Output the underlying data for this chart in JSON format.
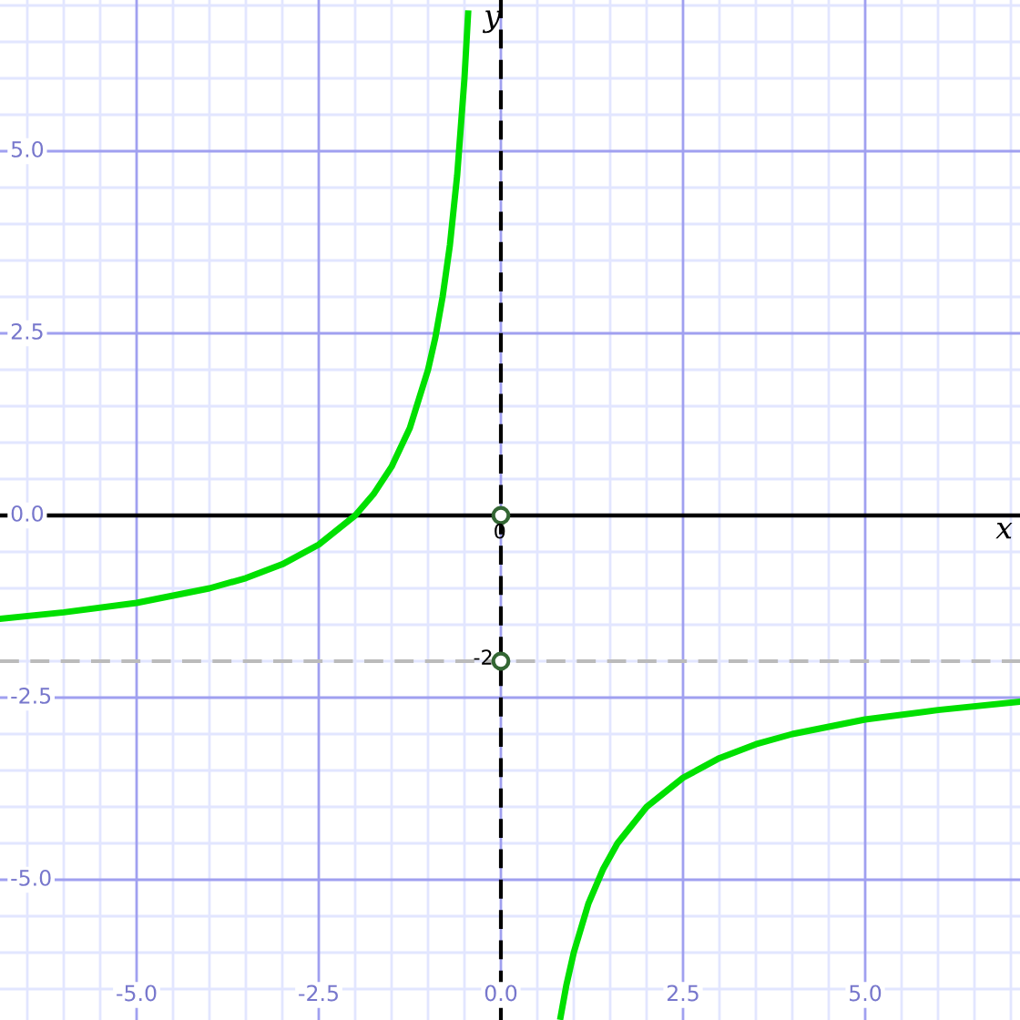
{
  "chart_data": {
    "type": "line",
    "xlabel": "x",
    "ylabel": "y",
    "xlim": [
      -6.875,
      7.125
    ],
    "ylim": [
      -6.925,
      7.075
    ],
    "xticks": [
      {
        "value": -5,
        "label": "-5.0"
      },
      {
        "value": -2.5,
        "label": "-2.5"
      },
      {
        "value": 0,
        "label": "0.0"
      },
      {
        "value": 2.5,
        "label": "2.5"
      },
      {
        "value": 5,
        "label": "5.0"
      }
    ],
    "yticks": [
      {
        "value": -5,
        "label": "-5.0"
      },
      {
        "value": -2.5,
        "label": "-2.5"
      },
      {
        "value": 0,
        "label": "0.0"
      },
      {
        "value": 2.5,
        "label": "2.5"
      },
      {
        "value": 5,
        "label": "5.0"
      }
    ],
    "grid": true,
    "line_style": "solid",
    "marker": "none",
    "series": [
      {
        "color": "#00e000",
        "x": [
          -6.875,
          -6,
          -5,
          -4,
          -3.5,
          -3,
          -2.5,
          -2,
          -1.75,
          -1.5,
          -1.25,
          -1,
          -0.9,
          -0.8,
          -0.7,
          -0.6,
          -0.5,
          -0.45
        ],
        "values": [
          -1.42,
          -1.33,
          -1.2,
          -1.0,
          -0.86,
          -0.67,
          -0.4,
          0,
          0.29,
          0.67,
          1.2,
          2,
          2.44,
          3,
          3.71,
          4.67,
          6,
          6.89
        ]
      },
      {
        "color": "#00e000",
        "x": [
          0.82,
          0.9,
          1,
          1.2,
          1.4,
          1.6,
          2,
          2.5,
          3,
          3.5,
          4,
          5,
          6,
          7.1
        ],
        "values": [
          -6.88,
          -6.44,
          -6,
          -5.33,
          -4.86,
          -4.5,
          -4,
          -3.6,
          -3.33,
          -3.14,
          -3,
          -2.8,
          -2.67,
          -2.56
        ]
      },
      {
        "type": "scatter",
        "marker": "circle",
        "color": "#336633",
        "x": [
          0,
          0
        ],
        "values": [
          0,
          -2
        ]
      }
    ],
    "ref_lines": [
      {
        "axis": "y",
        "value": 0,
        "color": "#000000",
        "line_style": "solid"
      },
      {
        "axis": "y",
        "value": -2,
        "color": "#bbbbbb",
        "line_style": "dashed"
      },
      {
        "axis": "x",
        "value": 0,
        "color": "#000000",
        "line_style": "dashed"
      }
    ],
    "annotations": [
      {
        "text": "0",
        "x": 0,
        "y": 0
      },
      {
        "text": "-2",
        "x": 0,
        "y": -2
      }
    ]
  }
}
